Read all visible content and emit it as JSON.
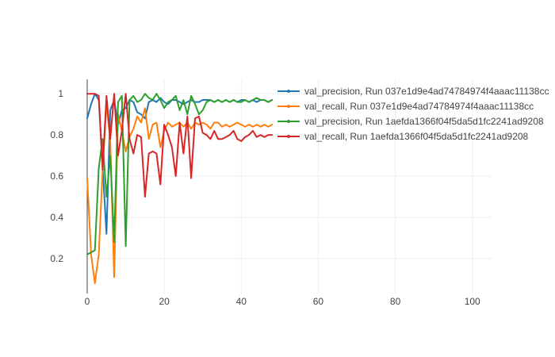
{
  "chart_data": {
    "type": "line",
    "title": "",
    "xlabel": "",
    "ylabel": "",
    "xlim": [
      0,
      105
    ],
    "ylim": [
      0.03,
      1.07
    ],
    "x_ticks": [
      0,
      20,
      40,
      60,
      80,
      100
    ],
    "y_ticks": [
      0.2,
      0.4,
      0.6,
      0.8,
      1
    ],
    "x_tick_labels": [
      "0",
      "20",
      "40",
      "60",
      "80",
      "100"
    ],
    "y_tick_labels": [
      "0.2",
      "0.4",
      "0.6",
      "0.8",
      "1"
    ],
    "grid": true,
    "legend_position": "top-right",
    "series": [
      {
        "name": "val_precision, Run 037e1d9e4ad74784974f4aaac11138cc",
        "color": "#1f77b4",
        "x": [
          0,
          1,
          2,
          3,
          4,
          5,
          6,
          7,
          8,
          9,
          10,
          11,
          12,
          13,
          14,
          15,
          16,
          17,
          18,
          19,
          20,
          21,
          22,
          23,
          24,
          25,
          26,
          27,
          28,
          29,
          30,
          31,
          32,
          33,
          34,
          35,
          36,
          37,
          38,
          39,
          40,
          41,
          42,
          43,
          44,
          45,
          46,
          47,
          48
        ],
        "y": [
          0.88,
          0.95,
          1.0,
          0.97,
          0.65,
          0.32,
          0.92,
          0.97,
          0.85,
          0.92,
          0.93,
          0.97,
          0.96,
          0.91,
          0.9,
          0.88,
          0.96,
          0.97,
          0.96,
          0.98,
          0.96,
          0.95,
          0.97,
          0.97,
          0.96,
          0.95,
          0.96,
          0.97,
          0.96,
          0.96,
          0.97,
          0.97,
          0.97,
          0.96,
          0.97,
          0.96,
          0.97,
          0.96,
          0.97,
          0.96,
          0.97,
          0.97,
          0.96,
          0.97,
          0.96,
          0.97,
          0.97,
          0.96,
          0.97
        ]
      },
      {
        "name": "val_recall, Run 037e1d9e4ad74784974f4aaac11138cc",
        "color": "#ff7f0e",
        "x": [
          0,
          1,
          2,
          3,
          4,
          5,
          6,
          7,
          8,
          9,
          10,
          11,
          12,
          13,
          14,
          15,
          16,
          17,
          18,
          19,
          20,
          21,
          22,
          23,
          24,
          25,
          26,
          27,
          28,
          29,
          30,
          31,
          32,
          33,
          34,
          35,
          36,
          37,
          38,
          39,
          40,
          41,
          42,
          43,
          44,
          45,
          46,
          47,
          48
        ],
        "y": [
          0.59,
          0.22,
          0.08,
          0.22,
          0.63,
          0.95,
          0.77,
          0.11,
          0.9,
          0.82,
          0.72,
          0.79,
          0.83,
          0.89,
          0.86,
          0.93,
          0.78,
          0.85,
          0.86,
          0.74,
          0.82,
          0.86,
          0.84,
          0.85,
          0.86,
          0.84,
          0.86,
          0.83,
          0.86,
          0.85,
          0.86,
          0.85,
          0.83,
          0.86,
          0.86,
          0.84,
          0.85,
          0.84,
          0.85,
          0.86,
          0.85,
          0.84,
          0.85,
          0.84,
          0.85,
          0.84,
          0.85,
          0.84,
          0.85
        ]
      },
      {
        "name": "val_precision, Run 1aefda1366f04f5da5d1fc2241ad9208",
        "color": "#2ca02c",
        "x": [
          0,
          1,
          2,
          3,
          4,
          5,
          6,
          7,
          8,
          9,
          10,
          11,
          12,
          13,
          14,
          15,
          16,
          17,
          18,
          19,
          20,
          21,
          22,
          23,
          24,
          25,
          26,
          27,
          28,
          29,
          30,
          31,
          32,
          33,
          34,
          35,
          36,
          37,
          38,
          39,
          40,
          41,
          42,
          43,
          44,
          45,
          46,
          47,
          48
        ],
        "y": [
          0.22,
          0.23,
          0.24,
          0.64,
          0.78,
          0.5,
          0.7,
          0.28,
          0.96,
          0.99,
          0.26,
          0.97,
          0.99,
          0.96,
          0.97,
          1.0,
          0.98,
          0.97,
          1.0,
          0.97,
          0.93,
          0.96,
          0.97,
          0.99,
          0.92,
          0.97,
          0.9,
          0.99,
          0.95,
          0.9,
          0.92,
          0.96,
          0.97,
          0.96,
          0.97,
          0.96,
          0.97,
          0.96,
          0.97,
          0.96,
          0.96,
          0.97,
          0.96,
          0.97,
          0.98,
          0.97,
          0.97,
          0.96,
          0.97
        ]
      },
      {
        "name": "val_recall, Run 1aefda1366f04f5da5d1fc2241ad9208",
        "color": "#d62728",
        "x": [
          0,
          1,
          2,
          3,
          4,
          5,
          6,
          7,
          8,
          9,
          10,
          11,
          12,
          13,
          14,
          15,
          16,
          17,
          18,
          19,
          20,
          21,
          22,
          23,
          24,
          25,
          26,
          27,
          28,
          29,
          30,
          31,
          32,
          33,
          34,
          35,
          36,
          37,
          38,
          39,
          40,
          41,
          42,
          43,
          44,
          45,
          46,
          47,
          48
        ],
        "y": [
          1.0,
          1.0,
          1.0,
          0.99,
          0.63,
          0.99,
          0.78,
          1.0,
          0.7,
          0.82,
          1.0,
          0.78,
          0.71,
          0.8,
          0.79,
          0.5,
          0.71,
          0.72,
          0.71,
          0.56,
          0.85,
          0.8,
          0.74,
          0.6,
          0.86,
          0.71,
          0.89,
          0.59,
          0.88,
          0.89,
          0.81,
          0.8,
          0.78,
          0.82,
          0.78,
          0.78,
          0.79,
          0.8,
          0.82,
          0.78,
          0.77,
          0.79,
          0.8,
          0.82,
          0.79,
          0.8,
          0.79,
          0.8,
          0.8
        ]
      }
    ]
  }
}
